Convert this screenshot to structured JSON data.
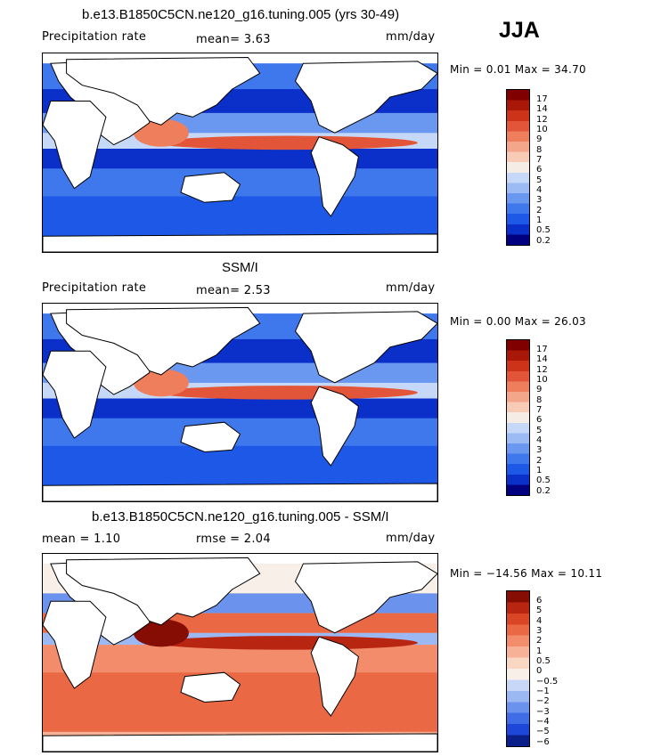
{
  "season": "JJA",
  "palette_abs": [
    "#000080",
    "#0b2fc9",
    "#1e58e6",
    "#3f78ec",
    "#6a98f0",
    "#9cbaf3",
    "#c6d8f7",
    "#f6ece6",
    "#f8cbb6",
    "#f4a68a",
    "#ef7e5d",
    "#e25538",
    "#cc3318",
    "#a81708",
    "#800000"
  ],
  "palette_diff": [
    "#0a1f8a",
    "#1c47d8",
    "#3e6de6",
    "#6b93ee",
    "#9cb8f3",
    "#c8d7f7",
    "#f7efe8",
    "#f9d7c3",
    "#f6b196",
    "#f38c6a",
    "#ea6844",
    "#d94525",
    "#b82612",
    "#850d04"
  ],
  "panels": [
    {
      "title": "b.e13.B1850C5CN.ne120_g16.tuning.005 (yrs 30-49)",
      "left_text": "Precipitation rate",
      "stat_text": "mean=   3.63",
      "units": "mm/day",
      "minmax": "Min =    0.01 Max =  34.70",
      "legend_labels": [
        "17",
        "14",
        "12",
        "10",
        "9",
        "8",
        "7",
        "6",
        "5",
        "4",
        "3",
        "2",
        "1",
        "0.5",
        "0.2"
      ],
      "field": "model"
    },
    {
      "title": "SSM/I",
      "left_text": "Precipitation rate",
      "stat_text": "mean=   2.53",
      "units": "mm/day",
      "minmax": "Min =    0.00 Max =  26.03",
      "legend_labels": [
        "17",
        "14",
        "12",
        "10",
        "9",
        "8",
        "7",
        "6",
        "5",
        "4",
        "3",
        "2",
        "1",
        "0.5",
        "0.2"
      ],
      "field": "obs"
    },
    {
      "title": "b.e13.B1850C5CN.ne120_g16.tuning.005 - SSM/I",
      "left_text": "mean =    1.10",
      "stat_text": "rmse =    2.04",
      "units": "mm/day",
      "minmax": "Min = −14.56 Max =  10.11",
      "legend_labels": [
        "6",
        "5",
        "4",
        "3",
        "2",
        "1",
        "0.5",
        "0",
        "−0.5",
        "−1",
        "−2",
        "−3",
        "−4",
        "−5",
        "−6"
      ],
      "field": "diff"
    }
  ]
}
